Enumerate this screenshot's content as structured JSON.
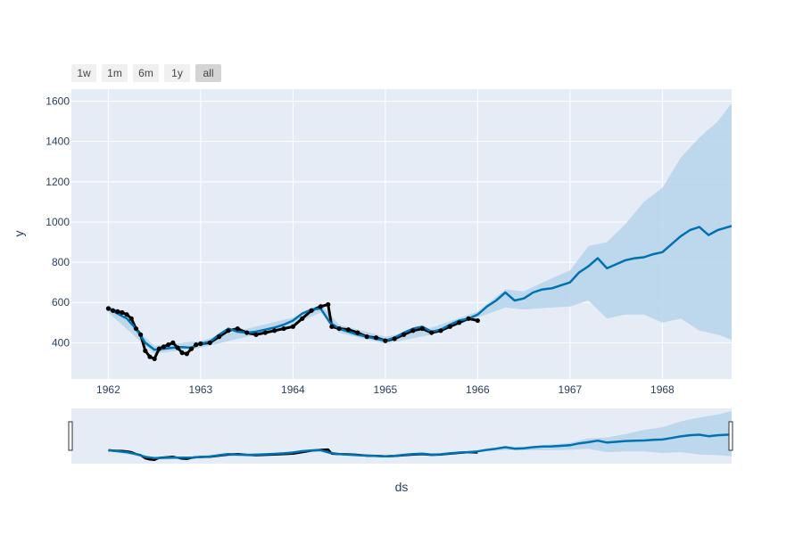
{
  "chart_data": {
    "type": "line",
    "title": "",
    "xlabel": "ds",
    "ylabel": "y",
    "xlim": [
      1961.6,
      1968.75
    ],
    "ylim": [
      220,
      1660
    ],
    "x_ticks": [
      1962,
      1963,
      1964,
      1965,
      1966,
      1967,
      1968
    ],
    "x_tick_labels": [
      "1962",
      "1963",
      "1964",
      "1965",
      "1966",
      "1967",
      "1968"
    ],
    "y_ticks": [
      400,
      600,
      800,
      1000,
      1200,
      1400,
      1600
    ],
    "y_tick_labels": [
      "400",
      "600",
      "800",
      "1000",
      "1200",
      "1400",
      "1600"
    ],
    "grid": true,
    "range_selector": [
      "1w",
      "1m",
      "6m",
      "1y",
      "all"
    ],
    "active_range": "all",
    "range_slider": true,
    "colors": {
      "plot_bg": "#e5ecf6",
      "grid": "#ffffff",
      "observed": "#000000",
      "forecast": "#0072b2",
      "interval": "#b6d3ea",
      "button": "#f0f0f0",
      "button_active": "#d4d4d4"
    },
    "series": [
      {
        "kind": "observed-markers",
        "x": [
          1962.0,
          1962.05,
          1962.1,
          1962.15,
          1962.2,
          1962.25,
          1962.3,
          1962.35,
          1962.4,
          1962.45,
          1962.5,
          1962.55,
          1962.6,
          1962.65,
          1962.7,
          1962.75,
          1962.8,
          1962.85,
          1962.9,
          1962.95,
          1963.0,
          1963.1,
          1963.2,
          1963.3,
          1963.4,
          1963.5,
          1963.6,
          1963.7,
          1963.8,
          1963.9,
          1964.0,
          1964.1,
          1964.2,
          1964.3,
          1964.38,
          1964.42,
          1964.5,
          1964.6,
          1964.7,
          1964.8,
          1964.9,
          1965.0,
          1965.1,
          1965.2,
          1965.3,
          1965.4,
          1965.5,
          1965.6,
          1965.7,
          1965.8,
          1965.9,
          1966.0
        ],
        "y": [
          570,
          560,
          555,
          550,
          540,
          520,
          470,
          440,
          360,
          330,
          320,
          370,
          380,
          390,
          400,
          375,
          350,
          345,
          370,
          390,
          395,
          400,
          430,
          460,
          470,
          450,
          440,
          450,
          460,
          470,
          480,
          520,
          560,
          580,
          590,
          480,
          470,
          465,
          450,
          430,
          425,
          410,
          420,
          440,
          460,
          470,
          450,
          460,
          480,
          500,
          520,
          510
        ]
      },
      {
        "kind": "forecast",
        "x": [
          1962.0,
          1962.1,
          1962.2,
          1962.3,
          1962.4,
          1962.5,
          1962.6,
          1962.7,
          1962.8,
          1962.9,
          1963.0,
          1963.1,
          1963.2,
          1963.3,
          1963.4,
          1963.5,
          1963.6,
          1963.7,
          1963.8,
          1963.9,
          1964.0,
          1964.1,
          1964.2,
          1964.3,
          1964.4,
          1964.5,
          1964.6,
          1964.7,
          1964.8,
          1964.9,
          1965.0,
          1965.1,
          1965.2,
          1965.3,
          1965.4,
          1965.5,
          1965.6,
          1965.7,
          1965.8,
          1965.9,
          1966.0,
          1966.1,
          1966.2,
          1966.3,
          1966.4,
          1966.5,
          1966.6,
          1966.7,
          1966.8,
          1966.9,
          1967.0,
          1967.1,
          1967.2,
          1967.3,
          1967.4,
          1967.5,
          1967.6,
          1967.7,
          1967.8,
          1967.9,
          1968.0,
          1968.1,
          1968.2,
          1968.3,
          1968.4,
          1968.5,
          1968.6,
          1968.75
        ],
        "y": [
          570,
          545,
          520,
          470,
          400,
          365,
          370,
          375,
          378,
          375,
          395,
          405,
          440,
          470,
          455,
          450,
          455,
          465,
          475,
          490,
          510,
          545,
          565,
          570,
          500,
          470,
          455,
          440,
          430,
          420,
          410,
          425,
          450,
          470,
          480,
          455,
          465,
          490,
          510,
          520,
          540,
          580,
          610,
          650,
          610,
          620,
          650,
          665,
          670,
          685,
          700,
          750,
          780,
          820,
          770,
          790,
          810,
          820,
          825,
          840,
          850,
          890,
          930,
          960,
          975,
          935,
          960,
          980
        ]
      },
      {
        "kind": "interval-upper",
        "x": [
          1962.0,
          1962.5,
          1963.0,
          1963.5,
          1964.0,
          1964.3,
          1964.5,
          1965.0,
          1965.5,
          1966.0,
          1966.3,
          1966.5,
          1966.8,
          1967.0,
          1967.2,
          1967.4,
          1967.6,
          1967.8,
          1968.0,
          1968.2,
          1968.4,
          1968.6,
          1968.75
        ],
        "y": [
          590,
          385,
          410,
          470,
          525,
          590,
          490,
          430,
          475,
          555,
          665,
          655,
          720,
          760,
          880,
          900,
          990,
          1100,
          1170,
          1320,
          1420,
          1500,
          1590
        ]
      },
      {
        "kind": "interval-lower",
        "x": [
          1962.0,
          1962.5,
          1963.0,
          1963.5,
          1964.0,
          1964.3,
          1964.5,
          1965.0,
          1965.5,
          1966.0,
          1966.3,
          1966.5,
          1966.8,
          1967.0,
          1967.2,
          1967.4,
          1967.6,
          1967.8,
          1968.0,
          1968.2,
          1968.4,
          1968.6,
          1968.75
        ],
        "y": [
          550,
          345,
          375,
          430,
          490,
          550,
          450,
          395,
          440,
          525,
          575,
          565,
          575,
          580,
          610,
          520,
          540,
          540,
          500,
          520,
          460,
          440,
          415
        ]
      }
    ]
  }
}
